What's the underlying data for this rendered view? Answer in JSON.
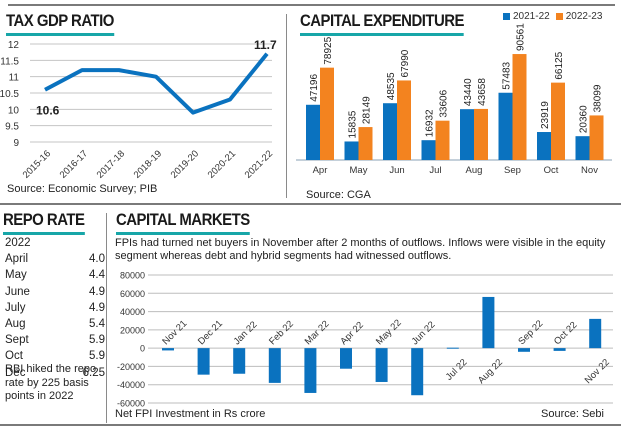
{
  "colors": {
    "blue": "#0a72bf",
    "orange": "#f3831f",
    "teal": "#17a6a8",
    "grid": "#bdbdbd"
  },
  "tax_gdp": {
    "title": "TAX GDP RATIO",
    "source": "Source: Economic Survey; PIB"
  },
  "capex": {
    "title": "CAPITAL EXPENDITURE",
    "source": "Source: CGA",
    "legend": [
      "2021-22",
      "2022-23"
    ]
  },
  "repo": {
    "title": "REPO RATE",
    "year": "2022",
    "rows": [
      {
        "month": "April",
        "rate": "4.0"
      },
      {
        "month": "May",
        "rate": "4.4"
      },
      {
        "month": "June",
        "rate": "4.9"
      },
      {
        "month": "July",
        "rate": "4.9"
      },
      {
        "month": "Aug",
        "rate": "5.4"
      },
      {
        "month": "Sept",
        "rate": "5.9"
      },
      {
        "month": "Oct",
        "rate": "5.9"
      },
      {
        "month": "Dec",
        "rate": "6.25"
      }
    ],
    "note": "RBI hiked the repo rate by 225 basis points in 2022"
  },
  "capital_markets": {
    "title": "CAPITAL MARKETS",
    "description": "FPIs had turned net buyers in November after 2 months of outflows. Inflows were visible in the equity segment whereas debt and hybrid segments had witnessed outflows.",
    "footnote": "Net FPI Investment in Rs crore",
    "source": "Source: Sebi"
  },
  "chart_data": [
    {
      "type": "line",
      "title": "TAX GDP RATIO",
      "categories": [
        "2015-16",
        "2016-17",
        "2017-18",
        "2018-19",
        "2019-20",
        "2020-21",
        "2021-22"
      ],
      "values": [
        10.6,
        11.2,
        11.2,
        11.0,
        9.9,
        10.3,
        11.7
      ],
      "data_labels": {
        "0": "10.6",
        "6": "11.7"
      },
      "yticks": [
        "12",
        "11.5",
        "11",
        "10.5",
        "10",
        "9.5",
        "9"
      ],
      "ylim": [
        9,
        12
      ],
      "grid": true,
      "xlabel": "",
      "ylabel": ""
    },
    {
      "type": "bar",
      "title": "CAPITAL EXPENDITURE",
      "categories": [
        "Apr",
        "May",
        "Jun",
        "Jul",
        "Aug",
        "Sep",
        "Oct",
        "Nov"
      ],
      "series": [
        {
          "name": "2021-22",
          "values": [
            47196,
            15835,
            48535,
            16932,
            43440,
            57483,
            23919,
            20360
          ]
        },
        {
          "name": "2022-23",
          "values": [
            78925,
            28149,
            67990,
            33606,
            43658,
            90561,
            66125,
            38099
          ]
        }
      ],
      "legend": "top-right",
      "ylim": [
        0,
        100000
      ],
      "grid": false
    },
    {
      "type": "bar",
      "title": "Net FPI Investment in Rs crore",
      "categories": [
        "Nov 21",
        "Dec 21",
        "Jan 22",
        "Feb 22",
        "Mar 22",
        "Apr 22",
        "May 22",
        "Jun 22",
        "Jul 22",
        "Aug 22",
        "Sep 22",
        "Oct 22",
        "Nov 22"
      ],
      "values": [
        -2500,
        -29000,
        -28000,
        -38000,
        -49000,
        -22500,
        -37000,
        -51500,
        500,
        56000,
        -4000,
        -3000,
        32000
      ],
      "yticks": [
        "80000",
        "60000",
        "40000",
        "20000",
        "0",
        "-20000",
        "-40000",
        "-60000"
      ],
      "ylim": [
        -60000,
        80000
      ],
      "grid": true
    }
  ]
}
